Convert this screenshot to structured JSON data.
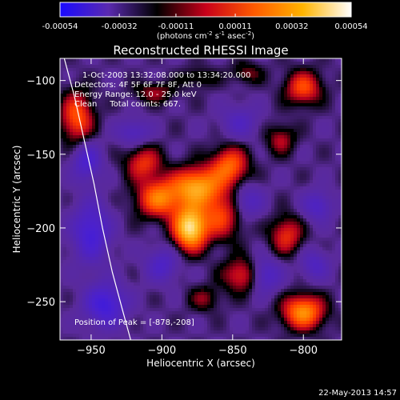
{
  "chart_data": {
    "type": "heatmap",
    "title": "Reconstructed RHESSI Image",
    "xlabel": "Heliocentric X (arcsec)",
    "ylabel": "Heliocentric Y (arcsec)",
    "xlim": [
      -972,
      -773
    ],
    "ylim": [
      -276,
      -85
    ],
    "x_ticks": [
      -950,
      -900,
      -850,
      -800
    ],
    "y_ticks": [
      -100,
      -150,
      -200,
      -250
    ],
    "colorbar": {
      "ticks": [
        "-0.00054",
        "-0.00032",
        "-0.00011",
        "0.00011",
        "0.00032",
        "0.00054"
      ],
      "tick_values": [
        -0.00054,
        -0.00032,
        -0.00011,
        0.00011,
        0.00032,
        0.00054
      ],
      "label_main": "(photons cm",
      "label_exp1": "-2",
      "label_mid1": " s",
      "label_exp2": "-1",
      "label_mid2": " asec",
      "label_exp3": "-2",
      "label_end": ")",
      "colors": [
        "#1a0aff",
        "#5a2ab0",
        "#000000",
        "#c8001a",
        "#ff5a00",
        "#ffb400",
        "#ffffff"
      ]
    },
    "annotations": {
      "time_range": "1-Oct-2003 13:32:08.000 to 13:34:20.000",
      "detectors": "Detectors: 4F 5F 6F 7F 8F, Att 0",
      "energy": "Energy Range: 12.0 - 25.0 keV",
      "clean": "Clean     Total counts: 667.",
      "peak": "Position of Peak = [-878,-208]"
    },
    "limb_curve": [
      [
        -969,
        -85
      ],
      [
        -962,
        -110
      ],
      [
        -955,
        -140
      ],
      [
        -948,
        -170
      ],
      [
        -942,
        -200
      ],
      [
        -935,
        -230
      ],
      [
        -928,
        -255
      ],
      [
        -922,
        -276
      ]
    ],
    "peak": [
      -878,
      -208
    ],
    "sources": [
      {
        "x": -880,
        "y": -200,
        "amp": 0.00054,
        "sx": 8,
        "sy": 10
      },
      {
        "x": -875,
        "y": -172,
        "amp": 0.0004,
        "sx": 12,
        "sy": 9
      },
      {
        "x": -902,
        "y": -180,
        "amp": 0.00033,
        "sx": 11,
        "sy": 9
      },
      {
        "x": -852,
        "y": -158,
        "amp": 0.0003,
        "sx": 9,
        "sy": 9
      },
      {
        "x": -858,
        "y": -192,
        "amp": 0.00024,
        "sx": 10,
        "sy": 11
      },
      {
        "x": -913,
        "y": -156,
        "amp": 0.00022,
        "sx": 9,
        "sy": 8
      },
      {
        "x": -960,
        "y": -125,
        "amp": 0.00028,
        "sx": 8,
        "sy": 12
      },
      {
        "x": -905,
        "y": -108,
        "amp": 0.00014,
        "sx": 10,
        "sy": 5
      },
      {
        "x": -874,
        "y": -98,
        "amp": 0.0001,
        "sx": 9,
        "sy": 5
      },
      {
        "x": -840,
        "y": -95,
        "amp": 0.00012,
        "sx": 8,
        "sy": 5
      },
      {
        "x": -800,
        "y": -105,
        "amp": 0.00026,
        "sx": 9,
        "sy": 8
      },
      {
        "x": -812,
        "y": -205,
        "amp": 0.00022,
        "sx": 8,
        "sy": 9
      },
      {
        "x": -842,
        "y": -232,
        "amp": 0.00024,
        "sx": 10,
        "sy": 8
      },
      {
        "x": -800,
        "y": -257,
        "amp": 0.00038,
        "sx": 10,
        "sy": 8
      },
      {
        "x": -816,
        "y": -140,
        "amp": 0.00016,
        "sx": 7,
        "sy": 7
      },
      {
        "x": -870,
        "y": -248,
        "amp": 0.00012,
        "sx": 8,
        "sy": 6
      },
      {
        "x": -953,
        "y": -155,
        "amp": -0.00022,
        "sx": 7,
        "sy": 9
      },
      {
        "x": -950,
        "y": -203,
        "amp": -0.00026,
        "sx": 9,
        "sy": 14
      },
      {
        "x": -940,
        "y": -252,
        "amp": -0.00028,
        "sx": 10,
        "sy": 10
      },
      {
        "x": -900,
        "y": -225,
        "amp": -0.00018,
        "sx": 8,
        "sy": 8
      },
      {
        "x": -840,
        "y": -182,
        "amp": -0.00016,
        "sx": 8,
        "sy": 8
      },
      {
        "x": -845,
        "y": -128,
        "amp": -0.00014,
        "sx": 9,
        "sy": 8
      },
      {
        "x": -828,
        "y": -232,
        "amp": -0.00024,
        "sx": 8,
        "sy": 8
      },
      {
        "x": -790,
        "y": -185,
        "amp": -0.00018,
        "sx": 7,
        "sy": 7
      },
      {
        "x": -920,
        "y": -135,
        "amp": -0.00016,
        "sx": 8,
        "sy": 6
      },
      {
        "x": -792,
        "y": -225,
        "amp": -0.00016,
        "sx": 7,
        "sy": 7
      }
    ]
  },
  "footer": {
    "date": "22-May-2013 14:57"
  }
}
